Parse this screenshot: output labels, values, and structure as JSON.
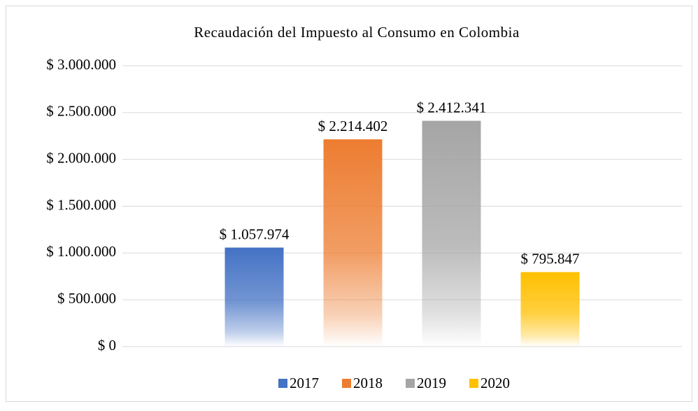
{
  "chart_data": {
    "type": "bar",
    "title": "Recaudación del Impuesto al Consumo en Colombia",
    "series": [
      {
        "name": "2017",
        "color": "#4472c4",
        "values": [
          1057974
        ],
        "value_labels": [
          "$ 1.057.974"
        ]
      },
      {
        "name": "2018",
        "color": "#ed7d31",
        "values": [
          2214402
        ],
        "value_labels": [
          "$ 2.214.402"
        ]
      },
      {
        "name": "2019",
        "color": "#a5a5a5",
        "values": [
          2412341
        ],
        "value_labels": [
          "$ 2.412.341"
        ]
      },
      {
        "name": "2020",
        "color": "#ffc000",
        "values": [
          795847
        ],
        "value_labels": [
          "$ 795.847"
        ]
      }
    ],
    "ylim": [
      0,
      3000000
    ],
    "yticks": [
      {
        "value": 0,
        "label": "$ 0"
      },
      {
        "value": 500000,
        "label": "$ 500.000"
      },
      {
        "value": 1000000,
        "label": "$ 1.000.000"
      },
      {
        "value": 1500000,
        "label": "$ 1.500.000"
      },
      {
        "value": 2000000,
        "label": "$ 2.000.000"
      },
      {
        "value": 2500000,
        "label": "$ 2.500.000"
      },
      {
        "value": 3000000,
        "label": "$ 3.000.000"
      }
    ],
    "grid": true,
    "legend": "bottom"
  }
}
